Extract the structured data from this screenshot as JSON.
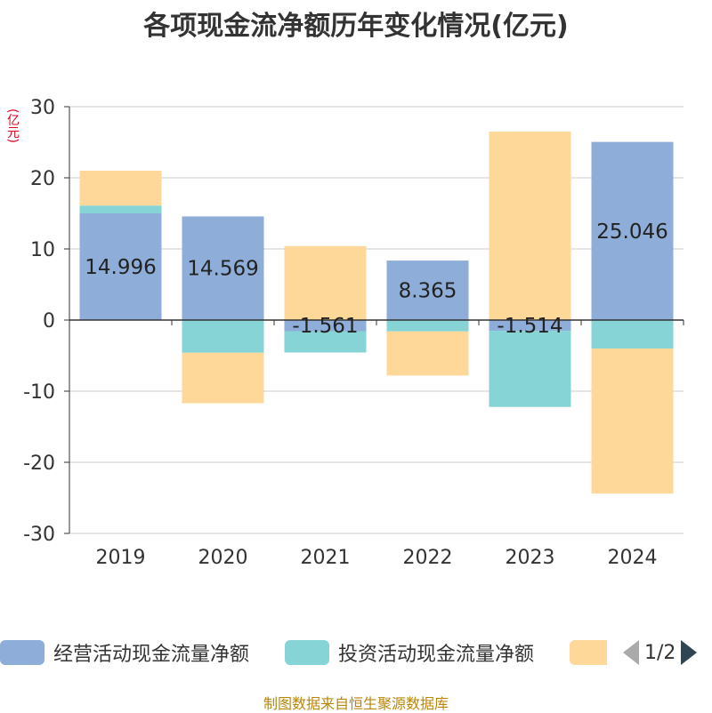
{
  "chart_data": {
    "type": "bar",
    "title": "各项现金流净额历年变化情况(亿元)",
    "ylabel": "(亿元)",
    "ylim": [
      -30,
      30
    ],
    "yticks": [
      30,
      20,
      10,
      0,
      -10,
      -20,
      -30
    ],
    "categories": [
      "2019",
      "2020",
      "2021",
      "2022",
      "2023",
      "2024"
    ],
    "stacked": true,
    "series": [
      {
        "name": "经营活动现金流量净额",
        "color": "#8eadd9",
        "values": [
          14.996,
          14.569,
          -1.561,
          8.365,
          -1.514,
          25.046
        ],
        "labeled": true
      },
      {
        "name": "投资活动现金流量净额",
        "color": "#86d4d6",
        "values": [
          1.1,
          -4.6,
          -3.0,
          -1.6,
          -10.7,
          -4.0
        ],
        "labeled": false
      },
      {
        "name": "",
        "color": "#fdd898",
        "values": [
          4.9,
          -7.1,
          10.4,
          -6.2,
          26.5,
          -20.4
        ],
        "labeled": false
      }
    ],
    "value_labels": [
      "14.996",
      "14.569",
      "-1.561",
      "8.365",
      "-1.514",
      "25.046"
    ]
  },
  "legend": {
    "items": [
      {
        "label": "经营活动现金流量净额",
        "color": "#8eadd9"
      },
      {
        "label": "投资活动现金流量净额",
        "color": "#86d4d6"
      },
      {
        "label": "",
        "color": "#fdd898"
      }
    ],
    "page": "1/2"
  },
  "source": "制图数据来自恒生聚源数据库"
}
